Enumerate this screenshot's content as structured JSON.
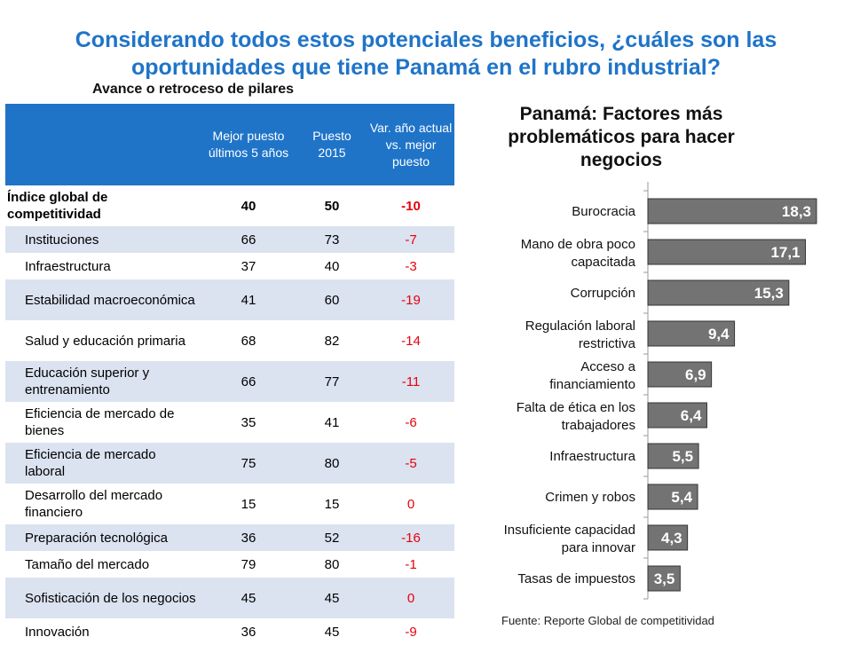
{
  "title": "Considerando todos estos potenciales beneficios, ¿cuáles son las oportunidades que tiene Panamá en el rubro industrial?",
  "table": {
    "caption": "Avance o retroceso de pilares",
    "headers": [
      "",
      "Mejor puesto últimos 5 años",
      "Puesto 2015",
      "Var. año actual vs. mejor puesto"
    ],
    "rows": [
      {
        "label": "Índice global de competitividad",
        "best": "40",
        "y2015": "50",
        "var": "-10"
      },
      {
        "label": "Instituciones",
        "best": "66",
        "y2015": "73",
        "var": "-7"
      },
      {
        "label": "Infraestructura",
        "best": "37",
        "y2015": "40",
        "var": "-3"
      },
      {
        "label": "Estabilidad macroeconómica",
        "best": "41",
        "y2015": "60",
        "var": "-19"
      },
      {
        "label": "Salud y educación primaria",
        "best": "68",
        "y2015": "82",
        "var": "-14"
      },
      {
        "label": "Educación superior y entrenamiento",
        "best": "66",
        "y2015": "77",
        "var": "-11"
      },
      {
        "label": "Eficiencia de mercado de bienes",
        "best": "35",
        "y2015": "41",
        "var": "-6"
      },
      {
        "label": "Eficiencia de mercado laboral",
        "best": "75",
        "y2015": "80",
        "var": "-5"
      },
      {
        "label": "Desarrollo del mercado financiero",
        "best": "15",
        "y2015": "15",
        "var": "0"
      },
      {
        "label": "Preparación tecnológica",
        "best": "36",
        "y2015": "52",
        "var": "-16"
      },
      {
        "label": "Tamaño del mercado",
        "best": "79",
        "y2015": "80",
        "var": "-1"
      },
      {
        "label": "Sofisticación de los negocios",
        "best": "45",
        "y2015": "45",
        "var": "0"
      },
      {
        "label": "Innovación",
        "best": "36",
        "y2015": "45",
        "var": "-9"
      }
    ]
  },
  "chart_data": {
    "type": "bar",
    "orientation": "horizontal",
    "title": "Panamá: Factores más problemáticos para hacer negocios",
    "categories": [
      "Burocracia",
      "Mano de obra poco capacitada",
      "Corrupción",
      "Regulación laboral restrictiva",
      "Acceso a financiamiento",
      "Falta de ética en los trabajadores",
      "Infraestructura",
      "Crimen y robos",
      "Insuficiente capacidad para innovar",
      "Tasas de impuestos"
    ],
    "values": [
      18.3,
      17.1,
      15.3,
      9.4,
      6.9,
      6.4,
      5.5,
      5.4,
      4.3,
      3.5
    ],
    "value_labels": [
      "18,3",
      "17,1",
      "15,3",
      "9,4",
      "6,9",
      "6,4",
      "5,5",
      "5,4",
      "4,3",
      "3,5"
    ],
    "label_lines": [
      [
        "Burocracia"
      ],
      [
        "Mano de obra poco",
        "capacitada"
      ],
      [
        "Corrupción"
      ],
      [
        "Regulación laboral",
        "restrictiva"
      ],
      [
        "Acceso a",
        "financiamiento"
      ],
      [
        "Falta de ética en los",
        "trabajadores"
      ],
      [
        "Infraestructura"
      ],
      [
        "Crimen y robos"
      ],
      [
        "Insuficiente capacidad",
        "para innovar"
      ],
      [
        "Tasas de impuestos"
      ]
    ],
    "bar_color": "#737373",
    "xlim": [
      0,
      18.3
    ]
  },
  "source": "Fuente: Reporte Global de competitividad"
}
